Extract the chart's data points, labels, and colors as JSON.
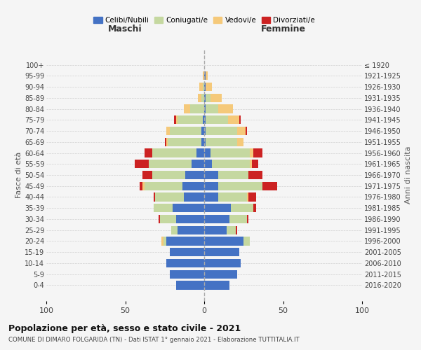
{
  "age_groups": [
    "0-4",
    "5-9",
    "10-14",
    "15-19",
    "20-24",
    "25-29",
    "30-34",
    "35-39",
    "40-44",
    "45-49",
    "50-54",
    "55-59",
    "60-64",
    "65-69",
    "70-74",
    "75-79",
    "80-84",
    "85-89",
    "90-94",
    "95-99",
    "100+"
  ],
  "birth_years": [
    "2016-2020",
    "2011-2015",
    "2006-2010",
    "2001-2005",
    "1996-2000",
    "1991-1995",
    "1986-1990",
    "1981-1985",
    "1976-1980",
    "1971-1975",
    "1966-1970",
    "1961-1965",
    "1956-1960",
    "1951-1955",
    "1946-1950",
    "1941-1945",
    "1936-1940",
    "1931-1935",
    "1926-1930",
    "1921-1925",
    "≤ 1920"
  ],
  "maschi": {
    "celibi": [
      18,
      22,
      24,
      22,
      24,
      17,
      18,
      20,
      13,
      14,
      12,
      8,
      5,
      2,
      2,
      1,
      0,
      0,
      0,
      0,
      0
    ],
    "coniugati": [
      0,
      0,
      0,
      0,
      2,
      4,
      10,
      12,
      18,
      24,
      21,
      27,
      28,
      21,
      20,
      16,
      9,
      2,
      1,
      0,
      0
    ],
    "vedovi": [
      0,
      0,
      0,
      0,
      1,
      0,
      0,
      0,
      0,
      1,
      0,
      0,
      0,
      1,
      2,
      1,
      4,
      2,
      2,
      1,
      0
    ],
    "divorziati": [
      0,
      0,
      0,
      0,
      0,
      0,
      1,
      0,
      1,
      2,
      6,
      9,
      5,
      1,
      0,
      1,
      0,
      0,
      0,
      0,
      0
    ]
  },
  "femmine": {
    "nubili": [
      16,
      21,
      23,
      22,
      25,
      14,
      16,
      17,
      9,
      9,
      9,
      5,
      4,
      1,
      1,
      1,
      1,
      1,
      1,
      1,
      0
    ],
    "coniugate": [
      0,
      0,
      0,
      0,
      4,
      6,
      11,
      14,
      18,
      28,
      19,
      24,
      25,
      20,
      20,
      14,
      8,
      3,
      0,
      0,
      0
    ],
    "vedove": [
      0,
      0,
      0,
      0,
      0,
      0,
      0,
      0,
      1,
      0,
      0,
      1,
      2,
      4,
      5,
      7,
      9,
      7,
      4,
      1,
      0
    ],
    "divorziate": [
      0,
      0,
      0,
      0,
      0,
      1,
      1,
      2,
      5,
      9,
      9,
      4,
      6,
      0,
      1,
      1,
      0,
      0,
      0,
      0,
      0
    ]
  },
  "colors": {
    "celibi": "#4472C4",
    "coniugati": "#C5D8A0",
    "vedovi": "#F5C97A",
    "divorziati": "#CC2222"
  },
  "xlim": 100,
  "title": "Popolazione per età, sesso e stato civile - 2021",
  "subtitle": "COMUNE DI DIMARO FOLGARIDA (TN) - Dati ISTAT 1° gennaio 2021 - Elaborazione TUTTITALIA.IT",
  "ylabel_left": "Fasce di età",
  "ylabel_right": "Anni di nascita",
  "header_left": "Maschi",
  "header_right": "Femmine",
  "background_color": "#f5f5f5",
  "grid_color": "#cccccc"
}
